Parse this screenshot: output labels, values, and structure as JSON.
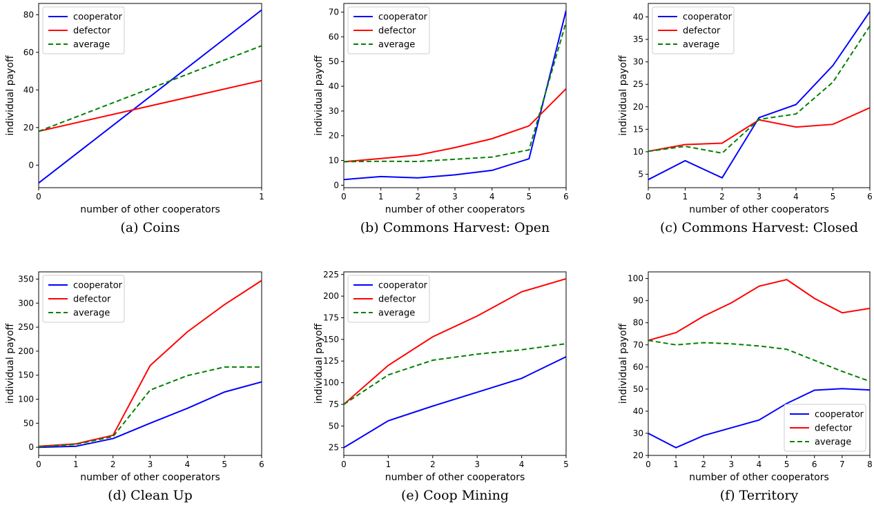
{
  "colors": {
    "cooperator": "#0000ff",
    "defector": "#ff0000",
    "average": "#008000",
    "axes": "#000000"
  },
  "chart_data": [
    {
      "type": "line",
      "caption": "(a) Coins",
      "xlabel": "number of other cooperators",
      "ylabel": "individual payoff",
      "xlim": [
        0,
        1
      ],
      "ylim": [
        -12,
        86
      ],
      "xticks": [
        0,
        1
      ],
      "yticks": [
        0,
        20,
        40,
        60,
        80
      ],
      "legend_loc": "upper-left",
      "x": [
        0,
        1
      ],
      "series": [
        {
          "name": "cooperator",
          "values": [
            -9.5,
            82.5
          ],
          "style": "solid"
        },
        {
          "name": "defector",
          "values": [
            18,
            45
          ],
          "style": "solid"
        },
        {
          "name": "average",
          "values": [
            18,
            63.5
          ],
          "style": "dashed"
        }
      ]
    },
    {
      "type": "line",
      "caption": "(b) Commons Harvest: Open",
      "xlabel": "number of other cooperators",
      "ylabel": "individual payoff",
      "xlim": [
        0,
        6
      ],
      "ylim": [
        -1,
        73.5
      ],
      "xticks": [
        0,
        1,
        2,
        3,
        4,
        5,
        6
      ],
      "yticks": [
        0,
        10,
        20,
        30,
        40,
        50,
        60,
        70
      ],
      "legend_loc": "upper-left",
      "x": [
        0,
        1,
        2,
        3,
        4,
        5,
        6
      ],
      "series": [
        {
          "name": "cooperator",
          "values": [
            2.3,
            3.5,
            3.0,
            4.2,
            6.0,
            10.7,
            70.7
          ],
          "style": "solid"
        },
        {
          "name": "defector",
          "values": [
            9.5,
            10.8,
            12.2,
            15.2,
            18.8,
            24.0,
            39.0
          ],
          "style": "solid"
        },
        {
          "name": "average",
          "values": [
            9.5,
            9.7,
            9.6,
            10.5,
            11.4,
            14.3,
            66.0
          ],
          "style": "dashed"
        }
      ]
    },
    {
      "type": "line",
      "caption": "(c) Commons Harvest: Closed",
      "xlabel": "number of other cooperators",
      "ylabel": "individual payoff",
      "xlim": [
        0,
        6
      ],
      "ylim": [
        2,
        43
      ],
      "xticks": [
        0,
        1,
        2,
        3,
        4,
        5,
        6
      ],
      "yticks": [
        5,
        10,
        15,
        20,
        25,
        30,
        35,
        40
      ],
      "legend_loc": "upper-left",
      "x": [
        0,
        1,
        2,
        3,
        4,
        5,
        6
      ],
      "series": [
        {
          "name": "cooperator",
          "values": [
            3.8,
            8.0,
            4.2,
            17.6,
            20.5,
            29.2,
            41.2
          ],
          "style": "solid"
        },
        {
          "name": "defector",
          "values": [
            10.1,
            11.6,
            11.9,
            17.1,
            15.5,
            16.1,
            19.8
          ],
          "style": "solid"
        },
        {
          "name": "average",
          "values": [
            10.1,
            11.2,
            9.7,
            17.2,
            18.4,
            25.5,
            38.0
          ],
          "style": "dashed"
        }
      ]
    },
    {
      "type": "line",
      "caption": "(d) Clean Up",
      "xlabel": "number of other cooperators",
      "ylabel": "individual payoff",
      "xlim": [
        0,
        6
      ],
      "ylim": [
        -17,
        365
      ],
      "xticks": [
        0,
        1,
        2,
        3,
        4,
        5,
        6
      ],
      "yticks": [
        0,
        50,
        100,
        150,
        200,
        250,
        300,
        350
      ],
      "legend_loc": "upper-left",
      "x": [
        0,
        1,
        2,
        3,
        4,
        5,
        6
      ],
      "series": [
        {
          "name": "cooperator",
          "values": [
            0,
            2,
            18,
            50,
            81,
            115,
            136
          ],
          "style": "solid"
        },
        {
          "name": "defector",
          "values": [
            2,
            7,
            25,
            170,
            240,
            297,
            347
          ],
          "style": "solid"
        },
        {
          "name": "average",
          "values": [
            1,
            6,
            22,
            119,
            149,
            167,
            167
          ],
          "style": "dashed"
        }
      ]
    },
    {
      "type": "line",
      "caption": "(e) Coop Mining",
      "xlabel": "number of other cooperators",
      "ylabel": "individual payoff",
      "xlim": [
        0,
        5
      ],
      "ylim": [
        16,
        228
      ],
      "xticks": [
        0,
        1,
        2,
        3,
        4,
        5
      ],
      "yticks": [
        25,
        50,
        75,
        100,
        125,
        150,
        175,
        200,
        225
      ],
      "legend_loc": "upper-left",
      "x": [
        0,
        1,
        2,
        3,
        4,
        5
      ],
      "series": [
        {
          "name": "cooperator",
          "values": [
            25,
            56,
            73,
            89,
            105,
            130
          ],
          "style": "solid"
        },
        {
          "name": "defector",
          "values": [
            75,
            120,
            153,
            177,
            205,
            220
          ],
          "style": "solid"
        },
        {
          "name": "average",
          "values": [
            75,
            109,
            126,
            133,
            138,
            145
          ],
          "style": "dashed"
        }
      ]
    },
    {
      "type": "line",
      "caption": "(f) Territory",
      "xlabel": "number of other cooperators",
      "ylabel": "individual payoff",
      "xlim": [
        0,
        8
      ],
      "ylim": [
        20,
        103
      ],
      "xticks": [
        0,
        1,
        2,
        3,
        4,
        5,
        6,
        7,
        8
      ],
      "yticks": [
        20,
        30,
        40,
        50,
        60,
        70,
        80,
        90,
        100
      ],
      "legend_loc": "lower-right",
      "x": [
        0,
        1,
        2,
        3,
        4,
        5,
        6,
        7,
        8
      ],
      "series": [
        {
          "name": "cooperator",
          "values": [
            30,
            23.5,
            29,
            32.5,
            36,
            43.5,
            49.5,
            50.2,
            49.6
          ],
          "style": "solid"
        },
        {
          "name": "defector",
          "values": [
            72,
            75.5,
            83,
            89,
            96.5,
            99.5,
            91,
            84.5,
            86.5
          ],
          "style": "solid"
        },
        {
          "name": "average",
          "values": [
            72,
            70,
            71,
            70.5,
            69.5,
            68,
            63,
            58,
            53.5
          ],
          "style": "dashed"
        }
      ]
    }
  ]
}
